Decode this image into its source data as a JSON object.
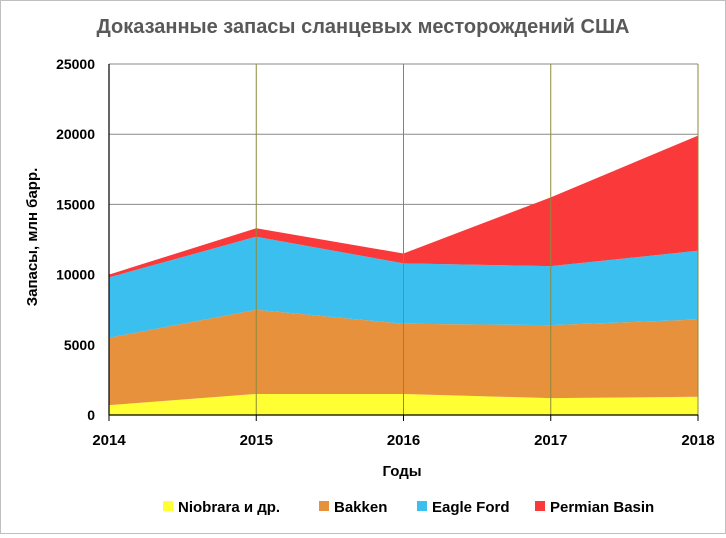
{
  "chart_data": {
    "type": "area",
    "stacked": true,
    "title": "Доказанные запасы сланцевых месторождений США",
    "xlabel": "Годы",
    "ylabel": "Запасы, млн барр.",
    "x": [
      "2014",
      "2015",
      "2016",
      "2017",
      "2018"
    ],
    "ylim": [
      0,
      25000
    ],
    "yticks": [
      "0",
      "5000",
      "10000",
      "15000",
      "20000",
      "25000"
    ],
    "grid": true,
    "legend_position": "bottom",
    "series": [
      {
        "name": "Niobrara и др.",
        "color": "#ffff33",
        "values": [
          700,
          1500,
          1500,
          1200,
          1300
        ]
      },
      {
        "name": "Bakken",
        "color": "#e8913c",
        "values": [
          4800,
          6000,
          5000,
          5200,
          5500
        ]
      },
      {
        "name": "Eagle Ford",
        "color": "#3bbfef",
        "values": [
          4300,
          5200,
          4300,
          4200,
          4900
        ]
      },
      {
        "name": "Permian Basin",
        "color": "#fa3a3a",
        "values": [
          200,
          600,
          700,
          4900,
          8200
        ]
      }
    ]
  }
}
